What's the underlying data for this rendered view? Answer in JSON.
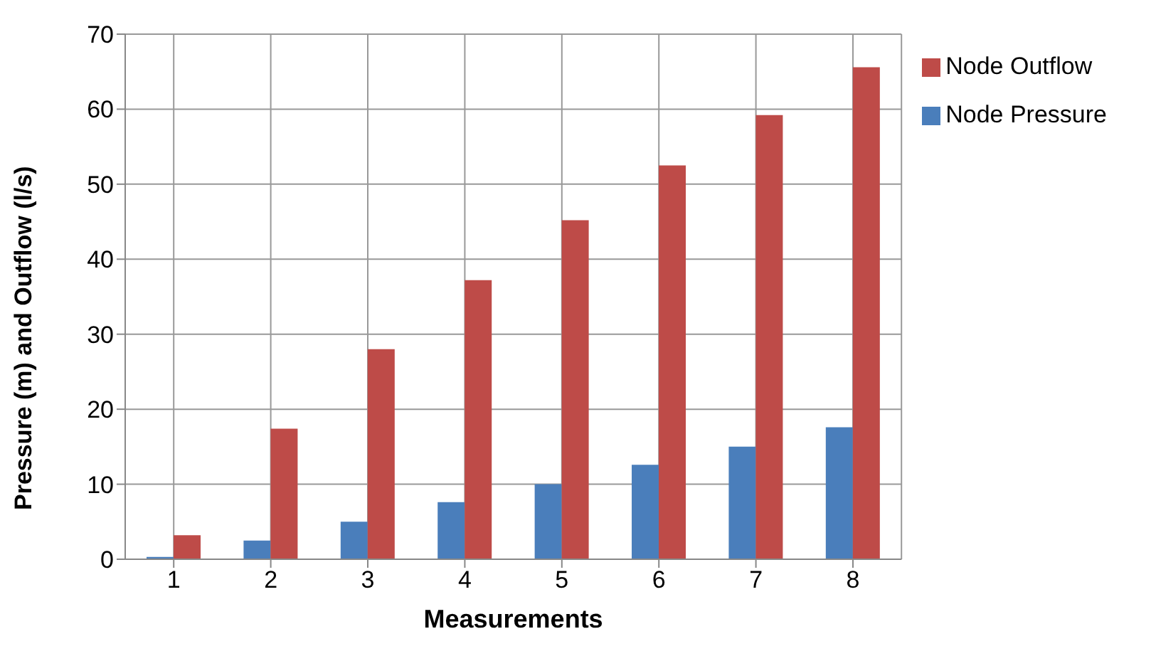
{
  "chart_data": {
    "type": "bar",
    "xlabel": "Measurements",
    "ylabel": "Pressure (m) and Outflow (l/s)",
    "categories": [
      "1",
      "2",
      "3",
      "4",
      "5",
      "6",
      "7",
      "8"
    ],
    "series": [
      {
        "name": "Node Pressure",
        "color": "#4a7ebb",
        "values": [
          0.3,
          2.5,
          5,
          7.6,
          10,
          12.6,
          15,
          17.6
        ]
      },
      {
        "name": "Node Outflow",
        "color": "#be4b48",
        "values": [
          3.2,
          17.4,
          28,
          37.2,
          45.2,
          52.5,
          59.2,
          65.6
        ]
      }
    ],
    "ylim": [
      0,
      70
    ],
    "yticks": [
      0,
      10,
      20,
      30,
      40,
      50,
      60,
      70
    ],
    "grid": true,
    "legend": "top right"
  }
}
